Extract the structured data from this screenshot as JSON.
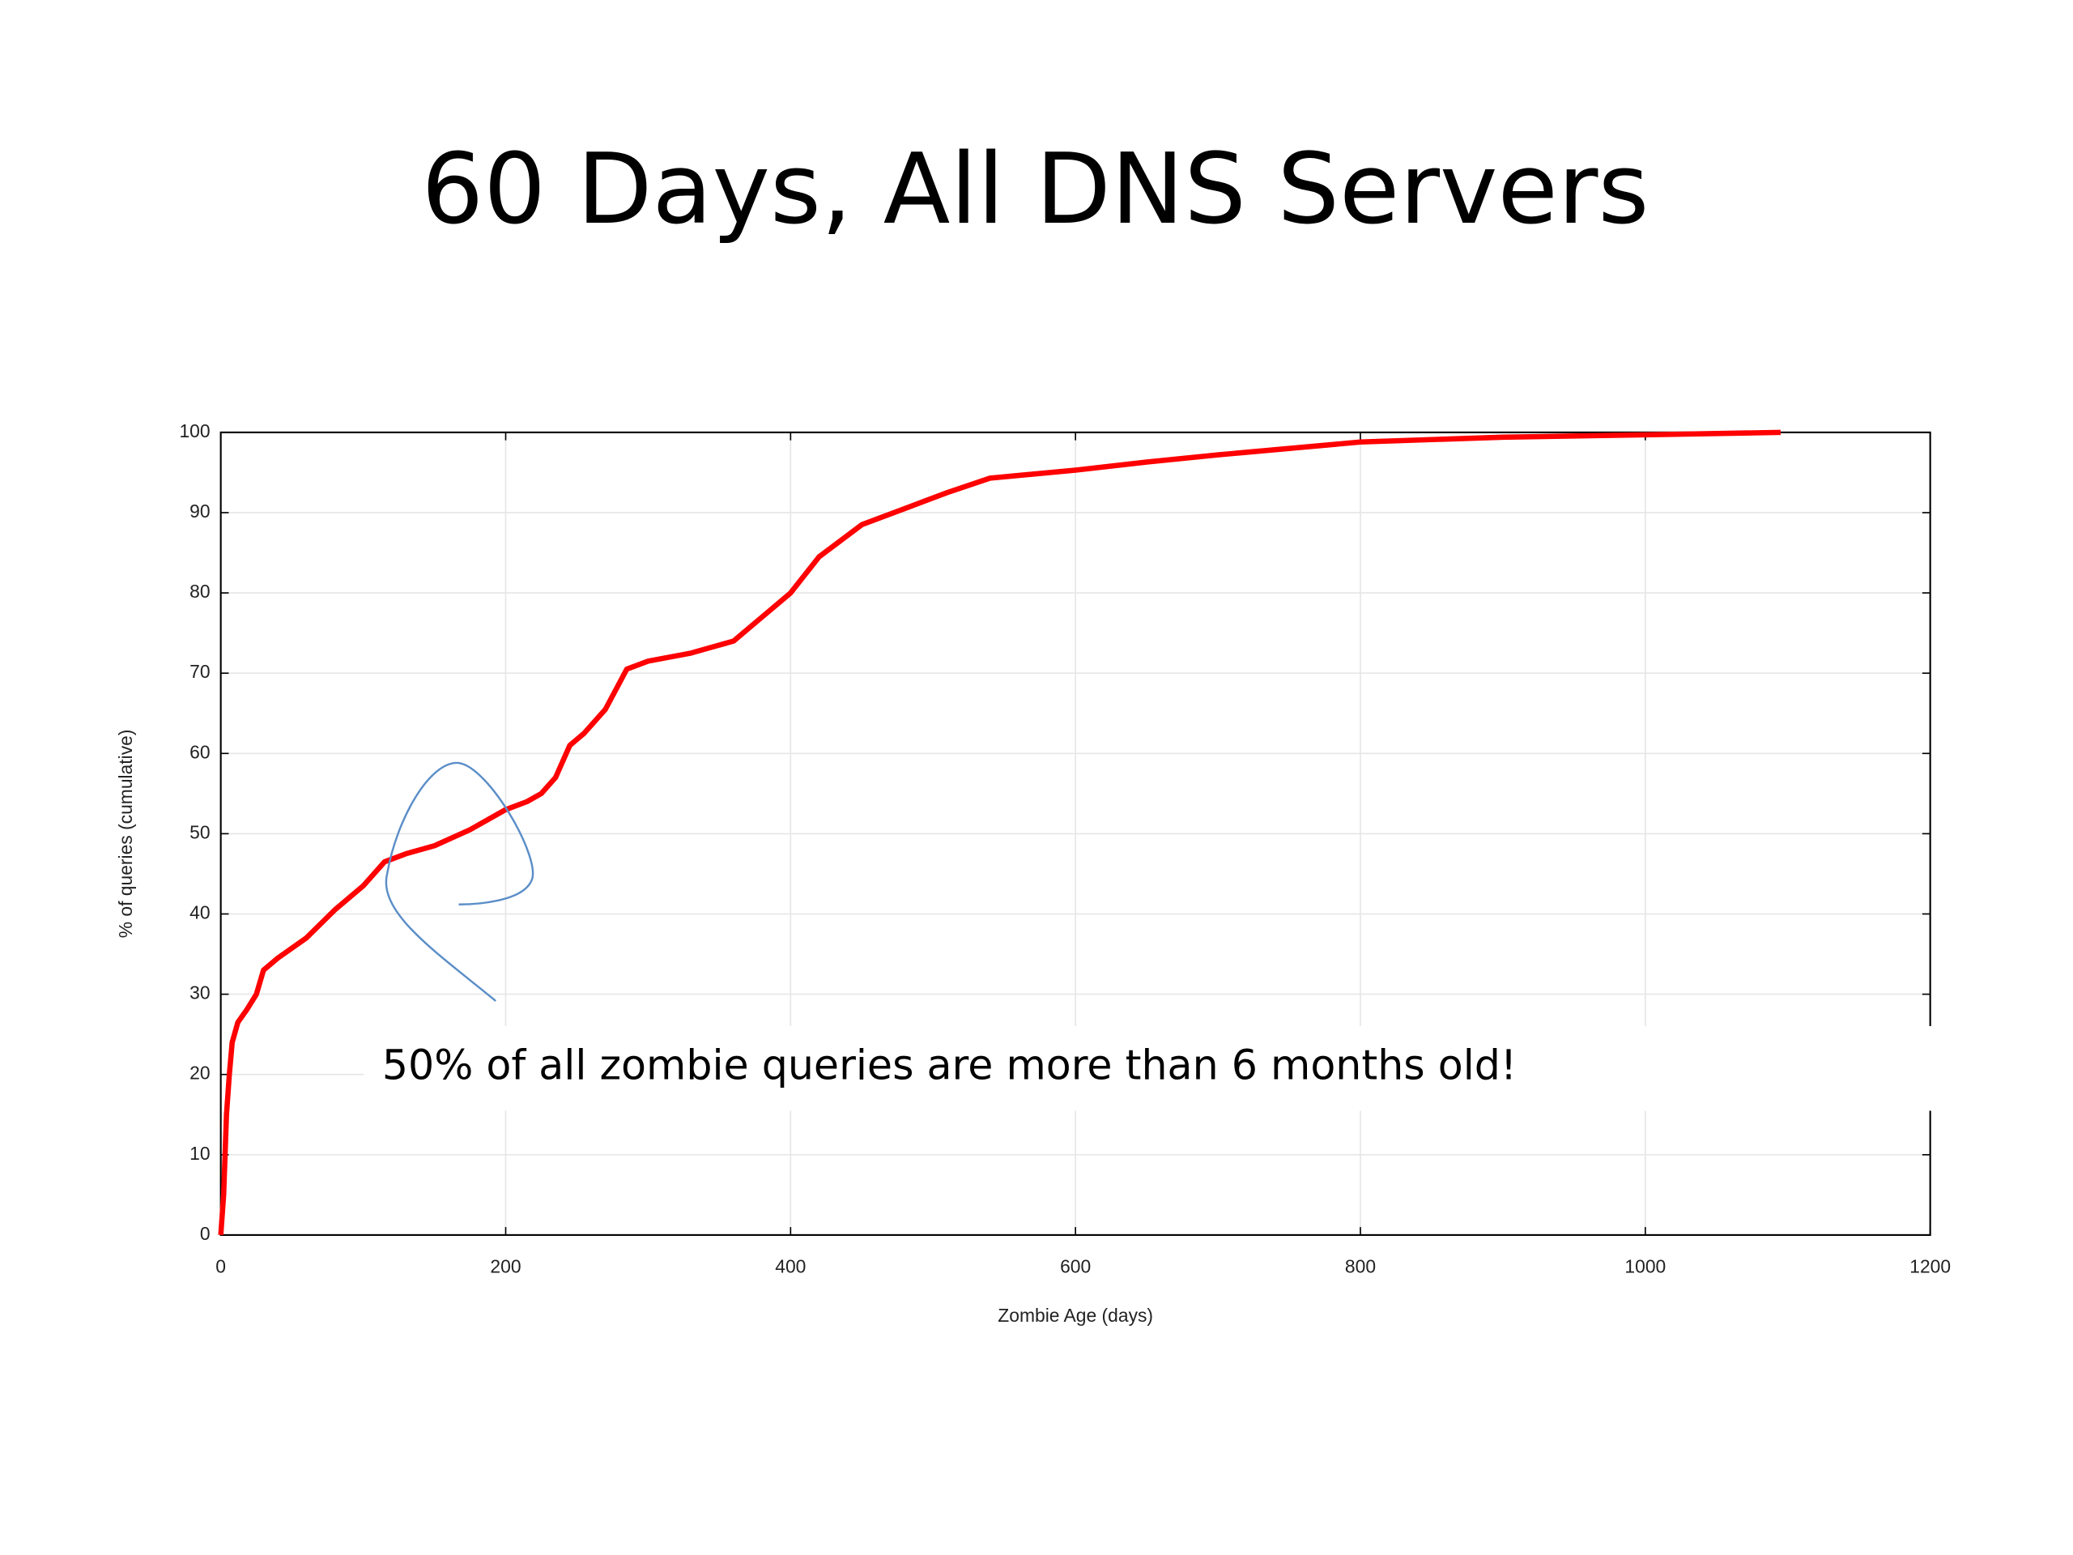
{
  "chart_data": {
    "type": "line",
    "title": "60 Days, All DNS Servers",
    "xlabel": "Zombie Age (days)",
    "ylabel": "% of queries (cumulative)",
    "annotation": "50% of all zombie queries are more than 6 months old!",
    "x": [
      0,
      2,
      4,
      6,
      8,
      12,
      18,
      25,
      30,
      40,
      60,
      80,
      100,
      115,
      130,
      150,
      175,
      200,
      215,
      225,
      235,
      245,
      255,
      270,
      285,
      300,
      330,
      360,
      380,
      400,
      420,
      450,
      480,
      510,
      540,
      600,
      650,
      700,
      800,
      900,
      1000,
      1095
    ],
    "values": [
      0,
      5,
      15,
      20,
      24,
      26.5,
      28,
      30,
      33,
      34.5,
      37,
      40.5,
      43.5,
      46.5,
      47.5,
      48.5,
      50.5,
      53,
      54,
      55,
      57,
      61,
      62.5,
      65.5,
      70.5,
      71.5,
      72.5,
      74,
      77,
      80,
      84.5,
      88.5,
      90.5,
      92.5,
      94.3,
      95.3,
      96.3,
      97.2,
      98.8,
      99.4,
      99.7,
      100
    ],
    "color": "#ff0000",
    "xlim": [
      0,
      1200
    ],
    "ylim": [
      0,
      100
    ],
    "xticks": [
      0,
      200,
      400,
      600,
      800,
      1000,
      1200
    ],
    "yticks": [
      0,
      10,
      20,
      30,
      40,
      50,
      60,
      70,
      80,
      90,
      100
    ],
    "grid": true
  }
}
